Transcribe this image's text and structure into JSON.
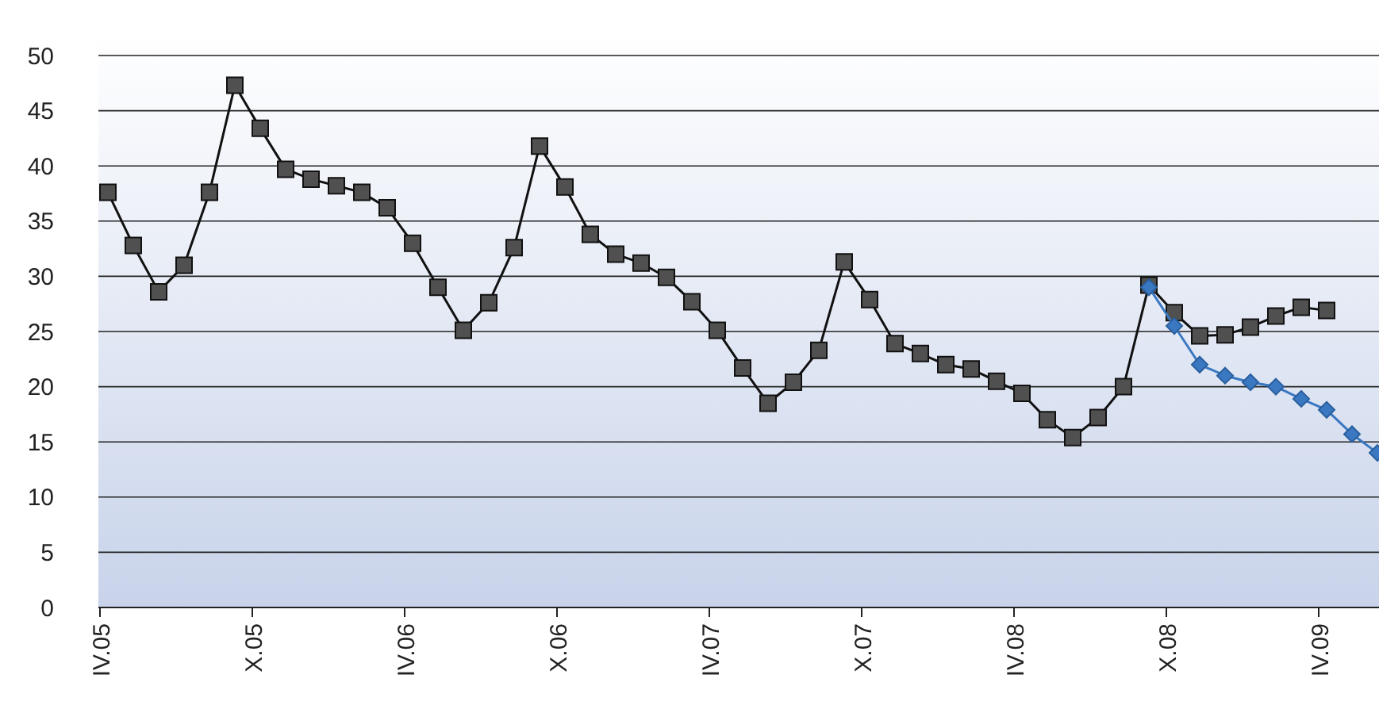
{
  "chart_data": {
    "type": "line",
    "categories": [
      "IV.05",
      null,
      null,
      null,
      null,
      null,
      "X.05",
      null,
      null,
      null,
      null,
      null,
      "IV.06",
      null,
      null,
      null,
      null,
      null,
      "X.06",
      null,
      null,
      null,
      null,
      null,
      "IV.07",
      null,
      null,
      null,
      null,
      null,
      "X.07",
      null,
      null,
      null,
      null,
      null,
      "IV.08",
      null,
      null,
      null,
      null,
      null,
      "X.08",
      null,
      null,
      null,
      null,
      null,
      "IV.09",
      null,
      null
    ],
    "series": [
      {
        "color": "#505050",
        "marker": "square",
        "values": [
          37.6,
          32.8,
          28.6,
          31.0,
          37.6,
          47.3,
          43.4,
          39.7,
          38.8,
          38.2,
          37.6,
          36.2,
          33.0,
          29.0,
          25.1,
          27.6,
          32.6,
          41.8,
          38.1,
          33.8,
          32.0,
          31.2,
          29.9,
          27.7,
          25.1,
          21.7,
          18.5,
          20.4,
          23.3,
          31.3,
          27.9,
          23.9,
          23.0,
          22.0,
          21.6,
          20.5,
          19.4,
          17.0,
          15.4,
          17.2,
          20.0,
          29.2,
          26.7,
          24.6,
          24.7,
          25.4,
          26.4,
          27.2,
          26.9,
          null,
          null
        ]
      },
      {
        "color": "#3a78c2",
        "marker": "diamond",
        "values": [
          null,
          null,
          null,
          null,
          null,
          null,
          null,
          null,
          null,
          null,
          null,
          null,
          null,
          null,
          null,
          null,
          null,
          null,
          null,
          null,
          null,
          null,
          null,
          null,
          null,
          null,
          null,
          null,
          null,
          null,
          null,
          null,
          null,
          null,
          null,
          null,
          null,
          null,
          null,
          null,
          null,
          29.0,
          25.5,
          22.0,
          21.0,
          20.4,
          20.0,
          18.9,
          17.9,
          15.7,
          14.0
        ]
      }
    ],
    "ylim": [
      0,
      50
    ],
    "yticks": [
      0,
      5,
      10,
      15,
      20,
      25,
      30,
      35,
      40,
      45,
      50
    ],
    "grid": "y"
  }
}
